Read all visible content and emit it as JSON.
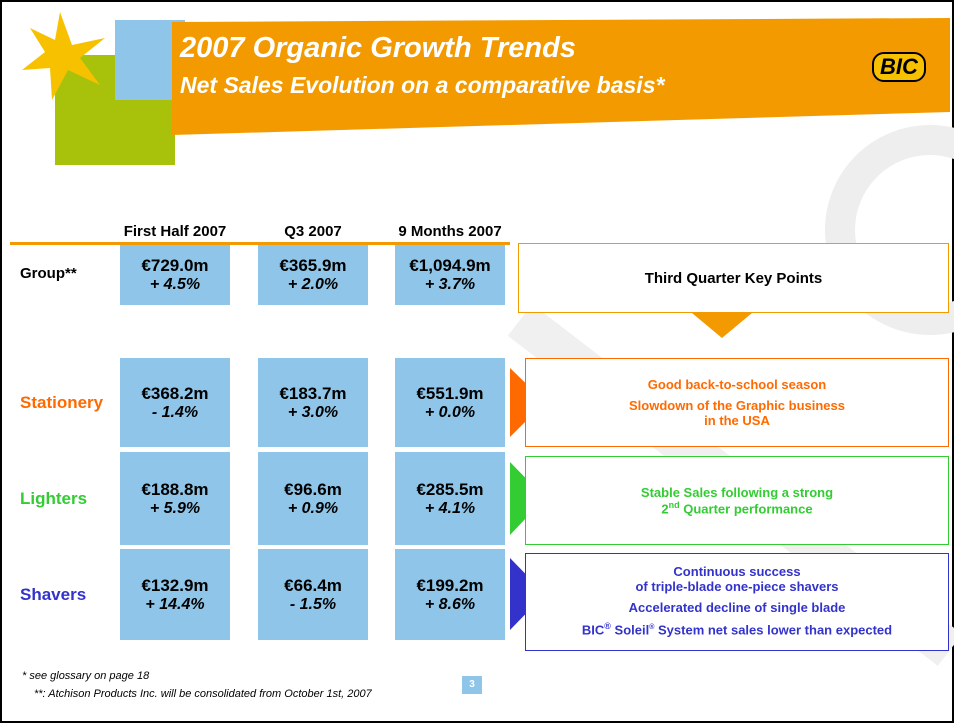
{
  "header": {
    "title": "2007 Organic Growth Trends",
    "subtitle": "Net Sales Evolution on a comparative basis*",
    "logo": "BIC"
  },
  "table": {
    "columns": [
      "First Half 2007",
      "Q3 2007",
      "9 Months 2007"
    ],
    "rows": [
      {
        "label": "Group**",
        "cells": [
          [
            "€729.0m",
            "+ 4.5%"
          ],
          [
            "€365.9m",
            "+ 2.0%"
          ],
          [
            "€1,094.9m",
            "+ 3.7%"
          ]
        ]
      },
      {
        "label": "Stationery",
        "cells": [
          [
            "€368.2m",
            "- 1.4%"
          ],
          [
            "€183.7m",
            "+ 3.0%"
          ],
          [
            "€551.9m",
            "+ 0.0%"
          ]
        ]
      },
      {
        "label": "Lighters",
        "cells": [
          [
            "€188.8m",
            "+ 5.9%"
          ],
          [
            "€96.6m",
            "+ 0.9%"
          ],
          [
            "€285.5m",
            "+ 4.1%"
          ]
        ]
      },
      {
        "label": "Shavers",
        "cells": [
          [
            "€132.9m",
            "+ 14.4%"
          ],
          [
            "€66.4m",
            "- 1.5%"
          ],
          [
            "€199.2m",
            "+ 8.6%"
          ]
        ]
      }
    ]
  },
  "key_points": {
    "title": "Third Quarter Key Points",
    "stationery": [
      "Good back-to-school season",
      "Slowdown of the Graphic business in the USA"
    ],
    "lighters": {
      "line1": "Stable Sales following a strong",
      "num": "2",
      "sup": "nd",
      "rest": " Quarter performance"
    },
    "shavers": {
      "line1": "Continuous success",
      "line2": "of triple-blade one-piece shavers",
      "line3": "Accelerated decline of single blade",
      "line4": [
        "BIC",
        "®",
        " Soleil",
        "®",
        " System net sales lower than expected"
      ]
    }
  },
  "footer": {
    "note1": "* see glossary on page 18",
    "note2": "**: Atchison Products Inc. will be consolidated from October 1st, 2007",
    "page": "3"
  }
}
